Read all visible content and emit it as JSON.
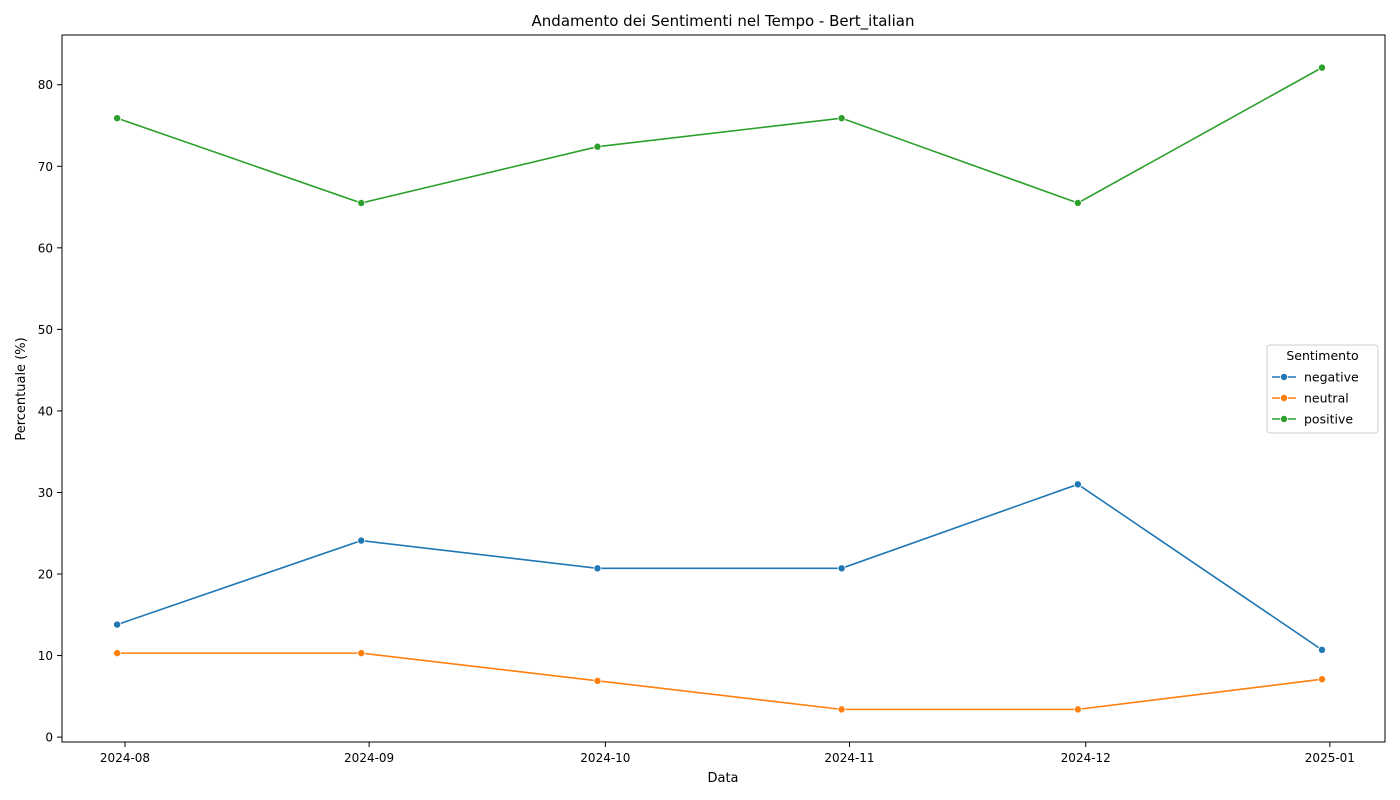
{
  "chart_data": {
    "type": "line",
    "title": "Andamento dei Sentimenti nel Tempo - Bert_italian",
    "xlabel": "Data",
    "ylabel": "Percentuale (%)",
    "x": [
      "2024-07-31",
      "2024-08-31",
      "2024-09-30",
      "2024-10-31",
      "2024-11-30",
      "2024-12-31"
    ],
    "x_ticks": [
      {
        "date": "2024-08-01",
        "label": "2024-08"
      },
      {
        "date": "2024-09-01",
        "label": "2024-09"
      },
      {
        "date": "2024-10-01",
        "label": "2024-10"
      },
      {
        "date": "2024-11-01",
        "label": "2024-11"
      },
      {
        "date": "2024-12-01",
        "label": "2024-12"
      },
      {
        "date": "2025-01-01",
        "label": "2025-01"
      }
    ],
    "y_ticks": [
      0,
      10,
      20,
      30,
      40,
      50,
      60,
      70,
      80
    ],
    "ylim": [
      -0.6,
      86.1
    ],
    "xlim": [
      "2024-07-24",
      "2025-01-08"
    ],
    "grid": false,
    "legend": {
      "title": "Sentimento",
      "placement": "center-right"
    },
    "series": [
      {
        "name": "negative",
        "color": "#1f77b4",
        "values": [
          13.8,
          24.1,
          20.7,
          20.7,
          31.0,
          10.7
        ]
      },
      {
        "name": "neutral",
        "color": "#ff7f0e",
        "values": [
          10.3,
          10.3,
          6.9,
          3.4,
          3.4,
          7.1
        ]
      },
      {
        "name": "positive",
        "color": "#2ca02c",
        "values": [
          75.9,
          65.5,
          72.4,
          75.9,
          65.5,
          82.1
        ]
      }
    ]
  }
}
